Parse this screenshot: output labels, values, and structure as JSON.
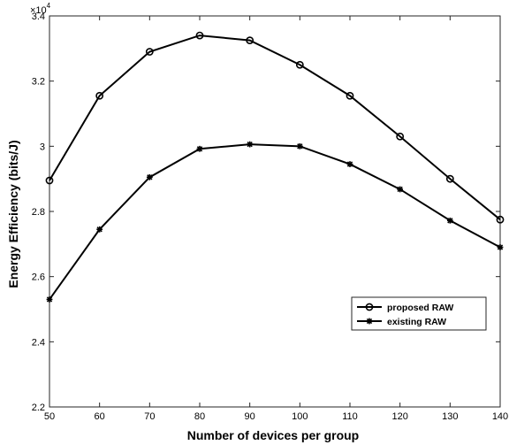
{
  "chart_data": {
    "type": "line",
    "x": [
      50,
      60,
      70,
      80,
      90,
      100,
      110,
      120,
      130,
      140
    ],
    "series": [
      {
        "name": "proposed RAW",
        "marker": "circle",
        "values": [
          28950,
          31550,
          32900,
          33400,
          33250,
          32500,
          31550,
          30300,
          29000,
          27750
        ]
      },
      {
        "name": "existing RAW",
        "marker": "asterisk",
        "values": [
          25300,
          27450,
          29050,
          29920,
          30060,
          30000,
          29450,
          28680,
          27720,
          26900
        ]
      }
    ],
    "xlabel": "Number of devices per group",
    "ylabel": "Energy Efficiency (bits/J)",
    "xlim": [
      50,
      140
    ],
    "ylim": [
      22000,
      34000
    ],
    "xticks": [
      50,
      60,
      70,
      80,
      90,
      100,
      110,
      120,
      130,
      140
    ],
    "yticks": [
      22000,
      24000,
      26000,
      28000,
      30000,
      32000,
      34000
    ],
    "ytick_labels": [
      "2.2",
      "2.4",
      "2.6",
      "2.8",
      "3",
      "3.2",
      "3.4"
    ],
    "y_exponent": "×10",
    "y_exponent_power": "4",
    "grid": false,
    "legend_position": "bottom-right",
    "line_color": "#000000"
  }
}
